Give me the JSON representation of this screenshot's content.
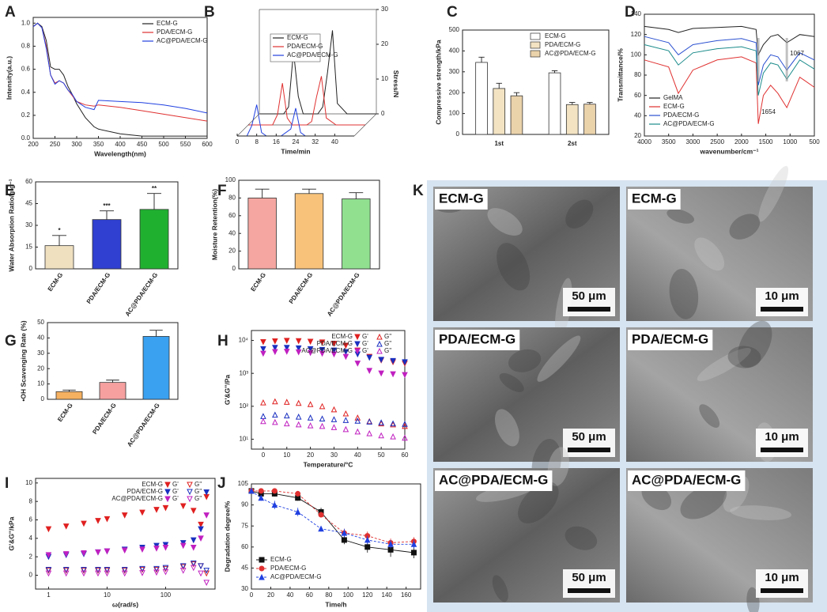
{
  "chart_data": [
    {
      "panel": "A",
      "type": "line",
      "xlabel": "Wavelength(nm)",
      "ylabel": "Intensity(a.u.)",
      "x": [
        200,
        210,
        220,
        230,
        240,
        250,
        260,
        270,
        280,
        290,
        300,
        320,
        340,
        350,
        400,
        450,
        500,
        550,
        600
      ],
      "series": [
        {
          "name": "ECM-G",
          "color": "#222222",
          "values": [
            0.97,
            1.0,
            0.97,
            0.85,
            0.62,
            0.6,
            0.6,
            0.55,
            0.45,
            0.38,
            0.3,
            0.18,
            0.1,
            0.08,
            0.04,
            0.02,
            0.02,
            0.02,
            0.02
          ]
        },
        {
          "name": "PDA/ECM-G",
          "color": "#e03030",
          "values": [
            0.97,
            1.0,
            0.96,
            0.8,
            0.55,
            0.48,
            0.5,
            0.48,
            0.42,
            0.37,
            0.32,
            0.29,
            0.28,
            0.29,
            0.27,
            0.24,
            0.21,
            0.18,
            0.15
          ]
        },
        {
          "name": "AC@PDA/ECM-G",
          "color": "#2040e0",
          "values": [
            0.97,
            1.0,
            0.96,
            0.78,
            0.55,
            0.47,
            0.5,
            0.48,
            0.42,
            0.38,
            0.32,
            0.27,
            0.25,
            0.33,
            0.32,
            0.31,
            0.29,
            0.26,
            0.22
          ]
        }
      ],
      "xlim": [
        200,
        600
      ],
      "xticks": [
        200,
        250,
        300,
        350,
        400,
        450,
        500,
        550,
        600
      ],
      "ylim": [
        0,
        1.05
      ],
      "yticks": [
        {
          "value": 0,
          "label": "0.0"
        },
        0.2,
        0.4,
        0.6,
        0.8,
        {
          "value": 1,
          "label": "1.0"
        }
      ],
      "legend": "upper right"
    },
    {
      "panel": "B",
      "type": "waterfall",
      "xlabel": "Time/min",
      "ylabel": "Stress/N",
      "x": [
        0,
        4,
        6,
        8,
        10,
        12,
        14,
        16,
        18,
        22,
        24,
        26,
        28,
        30,
        32,
        36,
        48
      ],
      "series": [
        {
          "name": "ECM-G",
          "color": "#222222",
          "values": [
            0,
            0,
            0,
            0,
            0,
            2,
            18,
            5,
            0,
            0,
            0,
            2,
            12,
            24,
            3,
            0,
            0
          ]
        },
        {
          "name": "PDA/ECM-G",
          "color": "#e03030",
          "values": [
            0,
            0,
            0,
            0,
            0,
            3,
            12,
            2,
            0,
            0,
            0,
            1,
            8,
            14,
            2,
            0,
            0
          ]
        },
        {
          "name": "AC@PDA/ECM-G",
          "color": "#2040e0",
          "values": [
            0,
            0,
            3,
            9,
            1,
            0,
            0,
            0,
            0,
            2,
            8,
            1,
            0,
            0,
            0,
            0,
            0
          ]
        }
      ],
      "xlim": [
        0,
        48
      ],
      "xticks": [
        0,
        8,
        16,
        24,
        32,
        40
      ],
      "ylim": [
        0,
        30
      ],
      "yticks": [
        0,
        10,
        20,
        30
      ],
      "legend": "upper center"
    },
    {
      "panel": "C",
      "type": "bar",
      "ylabel": "Compressive strength/kPa",
      "categories": [
        "1st",
        "2st"
      ],
      "series": [
        {
          "name": "ECM-G",
          "color": "#ffffff",
          "values": [
            345,
            295
          ],
          "errors": [
            25,
            10
          ]
        },
        {
          "name": "PDA/ECM-G",
          "color": "#f3e3c3",
          "values": [
            220,
            143
          ],
          "errors": [
            25,
            10
          ]
        },
        {
          "name": "AC@PDA/ECM-G",
          "color": "#ead2ab",
          "values": [
            185,
            145
          ],
          "errors": [
            15,
            8
          ]
        }
      ],
      "ylim": [
        0,
        500
      ],
      "yticks": [
        0,
        100,
        200,
        300,
        400,
        500
      ],
      "legend": "upper right"
    },
    {
      "panel": "D",
      "type": "line",
      "xlabel": "wavenumber/cm⁻¹",
      "ylabel": "Transmittance/%",
      "x": [
        4000,
        3500,
        3300,
        3000,
        2500,
        2000,
        1700,
        1654,
        1550,
        1400,
        1250,
        1067,
        800,
        500
      ],
      "series": [
        {
          "name": "GelMA",
          "color": "#222222",
          "values": [
            128,
            125,
            122,
            126,
            127,
            128,
            125,
            100,
            110,
            118,
            120,
            112,
            120,
            118
          ]
        },
        {
          "name": "ECM-G",
          "color": "#e03030",
          "values": [
            95,
            88,
            62,
            85,
            95,
            98,
            92,
            32,
            60,
            70,
            62,
            48,
            78,
            68
          ]
        },
        {
          "name": "PDA/ECM-G",
          "color": "#2a50d0",
          "values": [
            118,
            112,
            100,
            110,
            114,
            116,
            112,
            70,
            90,
            100,
            98,
            85,
            102,
            95
          ]
        },
        {
          "name": "AC@PDA/ECM-G",
          "color": "#1a8a8a",
          "values": [
            110,
            104,
            90,
            102,
            106,
            108,
            104,
            60,
            82,
            92,
            90,
            76,
            95,
            86
          ]
        }
      ],
      "annotations": [
        "1067",
        "1654"
      ],
      "xlim": [
        4000,
        500
      ],
      "xticks": [
        4000,
        3500,
        3000,
        2500,
        2000,
        1500,
        1000,
        500
      ],
      "ylim": [
        20,
        140
      ],
      "yticks": [
        20,
        40,
        60,
        80,
        100,
        120,
        140
      ],
      "legend": "lower left"
    },
    {
      "panel": "E",
      "type": "bar",
      "ylabel": "Water Absorption Ratio/g·g⁻¹",
      "categories": [
        "ECM-G",
        "PDA/ECM-G",
        "AC@PDA/ECM-G"
      ],
      "values": [
        16,
        34,
        41
      ],
      "errors": [
        7,
        6,
        11
      ],
      "colors": [
        "#efe0c0",
        "#3040d0",
        "#20b030"
      ],
      "significance": [
        "*",
        "***",
        "**"
      ],
      "ylim": [
        0,
        60
      ],
      "yticks": [
        0,
        15,
        30,
        45,
        60
      ]
    },
    {
      "panel": "F",
      "type": "bar",
      "ylabel": "Moisture Retention(%)",
      "categories": [
        "ECM-G",
        "PDA/ECM-G",
        "AC@PDA/ECM-G"
      ],
      "values": [
        80,
        85,
        79
      ],
      "errors": [
        10,
        5,
        7
      ],
      "colors": [
        "#f5a6a0",
        "#f8c27a",
        "#90e090"
      ],
      "ylim": [
        0,
        100
      ],
      "yticks": [
        0,
        20,
        40,
        60,
        80,
        100
      ]
    },
    {
      "panel": "G",
      "type": "bar",
      "ylabel": "•OH Scavenging Rate (%)",
      "categories": [
        "ECM-G",
        "PDA/ECM-G",
        "AC@PDA/ECM-G"
      ],
      "values": [
        5,
        11,
        41
      ],
      "errors": [
        1,
        1.5,
        4
      ],
      "colors": [
        "#f5b060",
        "#f6a0a0",
        "#3aa0f0"
      ],
      "ylim": [
        0,
        50
      ],
      "yticks": [
        0,
        10,
        20,
        30,
        40,
        50
      ]
    },
    {
      "panel": "H",
      "type": "scatter",
      "xlabel": "Temperature/°C",
      "ylabel": "G'&G''/Pa",
      "ylog": true,
      "x": [
        0,
        5,
        10,
        15,
        20,
        25,
        30,
        35,
        40,
        45,
        50,
        55,
        60
      ],
      "series": [
        {
          "group": "ECM-G",
          "name": "G'",
          "color": "#e02020",
          "marker": "down",
          "filled": true,
          "values": [
            9000,
            9500,
            9800,
            9600,
            9200,
            8800,
            8000,
            7000,
            5000,
            3200,
            2500,
            2200,
            2000
          ]
        },
        {
          "group": "ECM-G",
          "name": "G''",
          "color": "#e02020",
          "marker": "up",
          "filled": false,
          "values": [
            130,
            140,
            135,
            125,
            115,
            100,
            80,
            60,
            45,
            35,
            30,
            28,
            25
          ]
        },
        {
          "group": "PDA/ECM-G",
          "name": "G'",
          "color": "#1a30c0",
          "marker": "down",
          "filled": true,
          "values": [
            5500,
            6000,
            6000,
            5800,
            5500,
            5200,
            5000,
            4500,
            3800,
            3000,
            2600,
            2400,
            2200
          ]
        },
        {
          "group": "PDA/ECM-G",
          "name": "G''",
          "color": "#1a30c0",
          "marker": "up",
          "filled": false,
          "values": [
            50,
            55,
            52,
            48,
            45,
            42,
            40,
            38,
            36,
            34,
            32,
            30,
            29
          ]
        },
        {
          "group": "AC@PDA/ECM-G",
          "name": "G'",
          "color": "#c020c0",
          "marker": "down",
          "filled": true,
          "values": [
            4000,
            4500,
            4600,
            4400,
            4200,
            4000,
            3800,
            3200,
            2000,
            1200,
            1000,
            950,
            900
          ]
        },
        {
          "group": "AC@PDA/ECM-G",
          "name": "G''",
          "color": "#c020c0",
          "marker": "up",
          "filled": false,
          "values": [
            35,
            33,
            30,
            28,
            26,
            25,
            23,
            20,
            17,
            15,
            13,
            12,
            11
          ]
        }
      ],
      "xlim": [
        -5,
        60
      ],
      "xticks": [
        0,
        10,
        20,
        30,
        40,
        50,
        60
      ],
      "ylim": [
        5,
        20000
      ],
      "yticks": [
        {
          "value": 10,
          "label": "10¹"
        },
        {
          "value": 100,
          "label": "10²"
        },
        {
          "value": 1000,
          "label": "10³"
        },
        {
          "value": 10000,
          "label": "10⁴"
        }
      ],
      "legend": "upper right"
    },
    {
      "panel": "I",
      "type": "scatter",
      "xlabel": "ω(rad/s)",
      "ylabel": "G'&G''/kPa",
      "xlog": true,
      "x": [
        1,
        2,
        4,
        7,
        10,
        20,
        40,
        70,
        100,
        200,
        300,
        400,
        500
      ],
      "series": [
        {
          "group": "ECM-G",
          "name": "G'",
          "color": "#e02020",
          "marker": "down",
          "filled": true,
          "values": [
            5.0,
            5.3,
            5.6,
            5.9,
            6.1,
            6.5,
            6.8,
            7.1,
            7.3,
            7.5,
            7.0,
            5.5,
            8.5
          ]
        },
        {
          "group": "ECM-G",
          "name": "G''",
          "color": "#e02020",
          "marker": "down",
          "filled": false,
          "values": [
            0.5,
            0.5,
            0.5,
            0.5,
            0.5,
            0.5,
            0.6,
            0.6,
            0.7,
            0.9,
            1.2,
            1.0,
            0.2
          ]
        },
        {
          "group": "PDA/ECM-G",
          "name": "G'",
          "color": "#1a30c0",
          "marker": "down",
          "filled": true,
          "values": [
            2.0,
            2.2,
            2.3,
            2.5,
            2.6,
            2.8,
            3.0,
            3.2,
            3.3,
            3.5,
            3.8,
            5.0,
            9.0
          ]
        },
        {
          "group": "PDA/ECM-G",
          "name": "G''",
          "color": "#1a30c0",
          "marker": "down",
          "filled": false,
          "values": [
            0.6,
            0.6,
            0.6,
            0.6,
            0.6,
            0.6,
            0.7,
            0.7,
            0.8,
            1.0,
            1.3,
            1.0,
            0.5
          ]
        },
        {
          "group": "AC@PDA/ECM-G",
          "name": "G'",
          "color": "#c020c0",
          "marker": "down",
          "filled": true,
          "values": [
            2.2,
            2.3,
            2.4,
            2.5,
            2.6,
            2.7,
            2.8,
            2.9,
            3.0,
            3.2,
            3.0,
            4.0,
            6.5
          ]
        },
        {
          "group": "AC@PDA/ECM-G",
          "name": "G''",
          "color": "#c020c0",
          "marker": "down",
          "filled": false,
          "values": [
            0.2,
            0.2,
            0.2,
            0.2,
            0.2,
            0.2,
            0.25,
            0.3,
            0.35,
            0.5,
            0.8,
            0.2,
            -0.8
          ]
        }
      ],
      "xlim": [
        0.6,
        700
      ],
      "xticks": [
        1,
        10,
        100
      ],
      "ylim": [
        -1.5,
        10.5
      ],
      "yticks": [
        0,
        2,
        4,
        6,
        8,
        10
      ],
      "legend": "upper right"
    },
    {
      "panel": "J",
      "type": "line",
      "xlabel": "Time/h",
      "ylabel": "Degradation degree/%",
      "markers": true,
      "x": [
        0,
        10,
        24,
        48,
        72,
        96,
        120,
        144,
        168
      ],
      "series": [
        {
          "name": "ECM-G",
          "color": "#111111",
          "marker": "square",
          "dashed": false,
          "values": [
            100,
            98,
            98,
            95,
            85,
            65,
            60,
            58,
            56
          ],
          "errors": [
            1,
            1,
            2,
            2,
            3,
            3,
            4,
            5,
            4
          ]
        },
        {
          "name": "PDA/ECM-G",
          "color": "#e03030",
          "marker": "circle",
          "dashed": true,
          "values": [
            100,
            100,
            100,
            98,
            83,
            70,
            68,
            63,
            64
          ],
          "errors": [
            1,
            1,
            1,
            2,
            2,
            3,
            3,
            3,
            3
          ]
        },
        {
          "name": "AC@PDA/ECM-G",
          "color": "#2040e0",
          "marker": "up",
          "dashed": true,
          "values": [
            100,
            95,
            90,
            85,
            73,
            70,
            65,
            62,
            62
          ],
          "errors": [
            1,
            2,
            3,
            3,
            2,
            3,
            3,
            3,
            3
          ]
        }
      ],
      "xlim": [
        0,
        175
      ],
      "xticks": [
        0,
        20,
        40,
        60,
        80,
        100,
        120,
        140,
        160
      ],
      "ylim": [
        30,
        105
      ],
      "yticks": [
        30,
        45,
        60,
        75,
        90,
        105
      ],
      "legend": "lower left"
    }
  ],
  "images": {
    "panel": "K",
    "items": [
      {
        "label": "ECM-G",
        "scale": "50 μm"
      },
      {
        "label": "ECM-G",
        "scale": "10 μm"
      },
      {
        "label": "PDA/ECM-G",
        "scale": "50 μm"
      },
      {
        "label": "PDA/ECM-G",
        "scale": "10 μm"
      },
      {
        "label": "AC@PDA/ECM-G",
        "scale": "50 μm"
      },
      {
        "label": "AC@PDA/ECM-G",
        "scale": "10 μm"
      }
    ]
  }
}
